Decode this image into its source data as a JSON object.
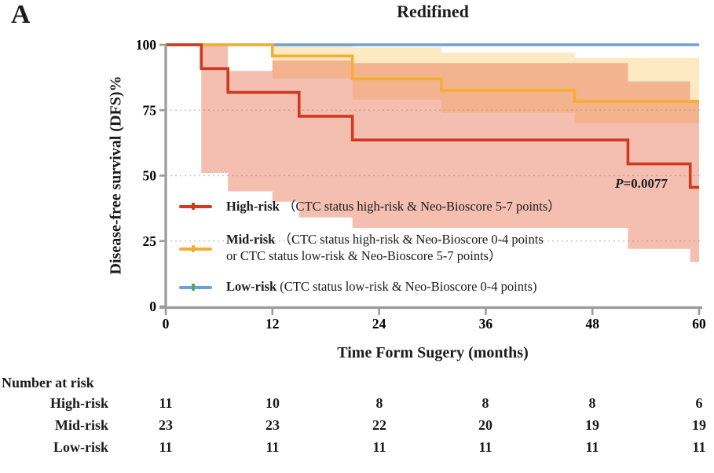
{
  "panel_label": "A",
  "title": "Redifined",
  "y_axis_label": "Disease-free survival (DFS)%",
  "x_axis_label": "Time Form Sugery (months)",
  "p_value": {
    "prefix": "P",
    "rest": "=0.0077"
  },
  "colors": {
    "high_risk": "#ce3a1e",
    "mid_risk": "#f5ae31",
    "low_risk": "#6aa2d8",
    "censor_tick_low": "#57a653",
    "axis": "#9b9b9b",
    "gridline": "#c9c9c9"
  },
  "legend": {
    "items": [
      {
        "name": "High-risk",
        "desc": "（CTC status high-risk & Neo-Bioscore 5-7 points）",
        "color": "#ce3a1e",
        "tick_color": "#ce3a1e"
      },
      {
        "name": "Mid-risk",
        "desc": "（CTC status high-risk & Neo-Bioscore 0-4 points",
        "desc2": "or CTC status low-risk & Neo-Bioscore 5-7 points）",
        "color": "#f5ae31",
        "tick_color": "#f5ae31"
      },
      {
        "name": "Low-risk",
        "desc": "(CTC status low-risk & Neo-Bioscore 0-4 points)",
        "color": "#6aa2d8",
        "tick_color": "#57a653"
      }
    ]
  },
  "chart_data": {
    "type": "line",
    "subtype": "kaplan-meier-step",
    "title": "Redifined",
    "xlabel": "Time Form Sugery (months)",
    "ylabel": "Disease-free survival (DFS)%",
    "xlim": [
      0,
      60
    ],
    "ylim": [
      0,
      100
    ],
    "x_ticks": [
      0,
      12,
      24,
      36,
      48,
      60
    ],
    "y_ticks": [
      0,
      25,
      50,
      75,
      100
    ],
    "gridlines_y": [
      25,
      50,
      75
    ],
    "grid": "dotted",
    "legend_position": "inside-left",
    "annotation": {
      "text": "P=0.0077",
      "x_month": 52,
      "y_percent": 47
    },
    "series": [
      {
        "name": "High-risk",
        "color": "#ce3a1e",
        "ci_color": "rgba(231,112,80,0.45)",
        "steps": [
          [
            0,
            4,
            100
          ],
          [
            4,
            7,
            90.9
          ],
          [
            7,
            15,
            81.8
          ],
          [
            15,
            21,
            72.7
          ],
          [
            21,
            52,
            63.6
          ],
          [
            52,
            59,
            54.5
          ],
          [
            59,
            60,
            45.5
          ]
        ],
        "ci": [
          [
            4,
            7,
            100,
            51
          ],
          [
            7,
            12,
            90,
            44
          ],
          [
            12,
            15,
            94,
            40
          ],
          [
            15,
            21,
            94,
            34
          ],
          [
            21,
            52,
            93,
            30
          ],
          [
            52,
            59,
            86,
            22
          ],
          [
            59,
            60,
            79,
            17
          ]
        ]
      },
      {
        "name": "Mid-risk",
        "color": "#f5ae31",
        "ci_color": "rgba(247,184,56,0.30)",
        "steps": [
          [
            0,
            12,
            100
          ],
          [
            12,
            21,
            95.7
          ],
          [
            21,
            31,
            87.0
          ],
          [
            31,
            46,
            82.6
          ],
          [
            46,
            60,
            78.3
          ]
        ],
        "ci": [
          [
            12,
            21,
            100,
            87
          ],
          [
            21,
            31,
            99,
            79
          ],
          [
            31,
            46,
            97,
            74
          ],
          [
            46,
            60,
            95,
            70
          ]
        ]
      },
      {
        "name": "Low-risk",
        "color": "#6aa2d8",
        "ci_color": null,
        "steps": [
          [
            0,
            60,
            100
          ]
        ],
        "ci": []
      }
    ]
  },
  "risk_table": {
    "title": "Number at risk",
    "time_points": [
      0,
      12,
      24,
      36,
      48,
      60
    ],
    "rows": [
      {
        "label": "High-risk",
        "values": [
          "11",
          "10",
          "8",
          "8",
          "8",
          "6"
        ]
      },
      {
        "label": "Mid-risk",
        "values": [
          "23",
          "23",
          "22",
          "20",
          "19",
          "19"
        ]
      },
      {
        "label": "Low-risk",
        "values": [
          "11",
          "11",
          "11",
          "11",
          "11",
          "11"
        ]
      }
    ]
  }
}
